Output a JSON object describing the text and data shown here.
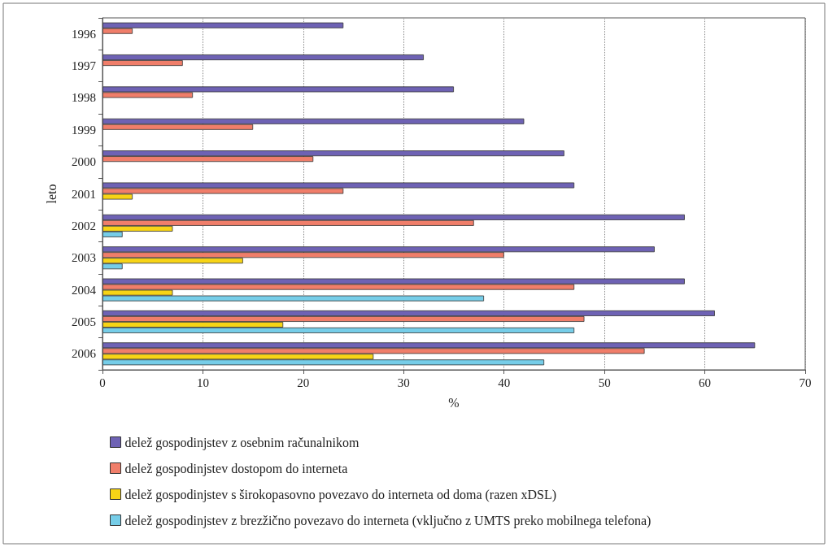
{
  "chart_data": {
    "type": "bar",
    "orientation": "horizontal",
    "xlabel": "%",
    "ylabel": "leto",
    "categories": [
      "1996",
      "1997",
      "1998",
      "1999",
      "2000",
      "2001",
      "2002",
      "2003",
      "2004",
      "2005",
      "2006"
    ],
    "series": [
      {
        "name": "delež gospodinjstev z osebnim računalnikom",
        "color": "#6e62b4",
        "values": [
          24,
          32,
          35,
          42,
          46,
          47,
          58,
          55,
          58,
          61,
          65
        ]
      },
      {
        "name": "delež gospodinjstev dostopom do interneta",
        "color": "#f07e6a",
        "values": [
          3,
          8,
          9,
          15,
          21,
          24,
          37,
          40,
          47,
          48,
          54
        ]
      },
      {
        "name": "delež gospodinjstev s širokopasovno povezavo do interneta od doma (razen xDSL)",
        "color": "#f7d416",
        "values": [
          null,
          null,
          null,
          null,
          null,
          3,
          7,
          14,
          7,
          18,
          27
        ]
      },
      {
        "name": "delež gospodinjstev z brezžično povezavo do interneta (vključno z UMTS preko mobilnega telefona)",
        "color": "#76cde8",
        "values": [
          null,
          null,
          null,
          null,
          null,
          null,
          2,
          2,
          38,
          47,
          44
        ]
      }
    ],
    "xlim": [
      0,
      70
    ],
    "xticks": [
      0,
      10,
      20,
      30,
      40,
      50,
      60,
      70
    ],
    "grid": "x",
    "legend": "bottom left"
  }
}
